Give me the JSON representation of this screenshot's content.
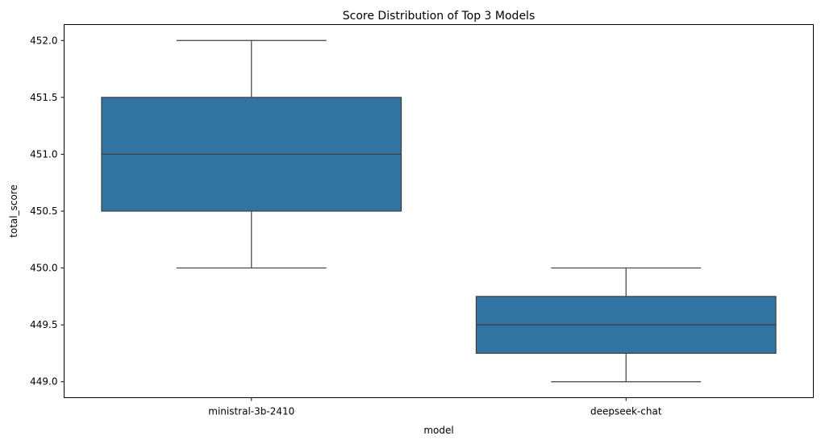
{
  "chart_data": {
    "type": "box",
    "title": "Score Distribution of Top 3 Models",
    "xlabel": "model",
    "ylabel": "total_score",
    "ylim": [
      448.86,
      452.14
    ],
    "yticks": [
      449.0,
      449.5,
      450.0,
      450.5,
      451.0,
      451.5,
      452.0
    ],
    "ytick_labels": [
      "449.0",
      "449.5",
      "450.0",
      "450.5",
      "451.0",
      "451.5",
      "452.0"
    ],
    "categories": [
      "ministral-3b-2410",
      "deepseek-chat"
    ],
    "boxes": [
      {
        "category": "ministral-3b-2410",
        "whisker_low": 450.0,
        "q1": 450.5,
        "median": 451.0,
        "q3": 451.5,
        "whisker_high": 452.0
      },
      {
        "category": "deepseek-chat",
        "whisker_low": 449.0,
        "q1": 449.25,
        "median": 449.5,
        "q3": 449.75,
        "whisker_high": 450.0
      }
    ],
    "colors": {
      "box_fill": "#3274a1",
      "line": "#3f3f3f",
      "axis": "#000000"
    },
    "grid": false,
    "legend": "none"
  }
}
